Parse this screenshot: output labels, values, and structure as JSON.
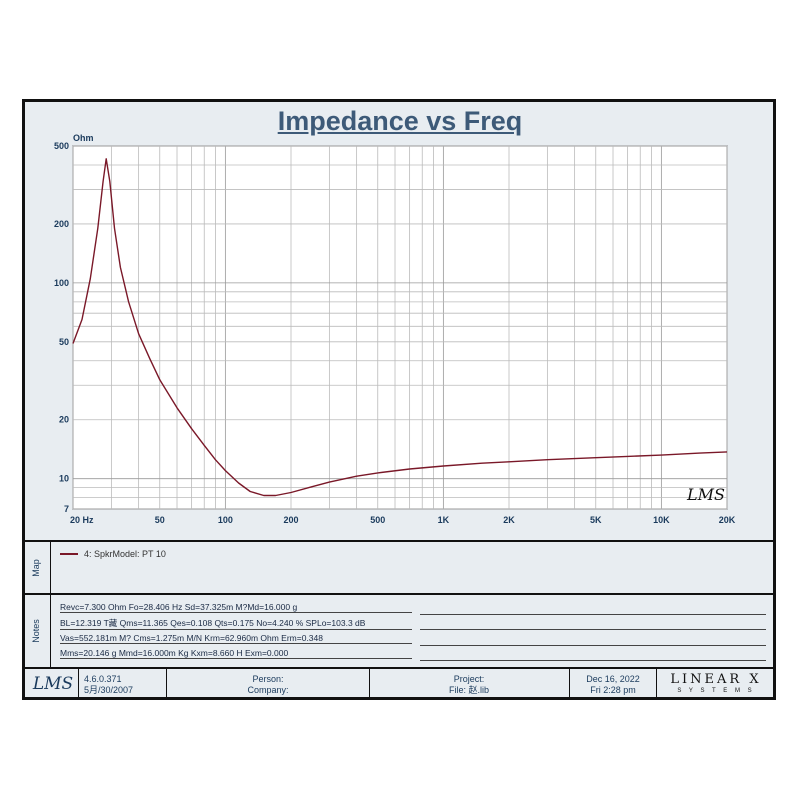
{
  "chart_data": {
    "type": "line",
    "title": "Impedance vs Freq",
    "ylabel": "Ohm",
    "xscale": "log",
    "yscale": "log",
    "xlim": [
      20,
      20000
    ],
    "ylim": [
      7,
      500
    ],
    "x_ticks": [
      {
        "value": 20,
        "label": "20  Hz"
      },
      {
        "value": 50,
        "label": "50"
      },
      {
        "value": 100,
        "label": "100"
      },
      {
        "value": 200,
        "label": "200"
      },
      {
        "value": 500,
        "label": "500"
      },
      {
        "value": 1000,
        "label": "1K"
      },
      {
        "value": 2000,
        "label": "2K"
      },
      {
        "value": 5000,
        "label": "5K"
      },
      {
        "value": 10000,
        "label": "10K"
      },
      {
        "value": 20000,
        "label": "20K"
      }
    ],
    "y_ticks": [
      {
        "value": 500,
        "label": "500"
      },
      {
        "value": 200,
        "label": "200"
      },
      {
        "value": 100,
        "label": "100"
      },
      {
        "value": 50,
        "label": "50"
      },
      {
        "value": 20,
        "label": "20"
      },
      {
        "value": 10,
        "label": "10"
      },
      {
        "value": 7,
        "label": "7"
      }
    ],
    "grid": true,
    "series": [
      {
        "name": "4: SpkrModel: PT 10",
        "color": "#7a1828",
        "points": [
          [
            20,
            49
          ],
          [
            22,
            65
          ],
          [
            24,
            105
          ],
          [
            26,
            190
          ],
          [
            27.5,
            330
          ],
          [
            28.4,
            430
          ],
          [
            29.5,
            330
          ],
          [
            31,
            190
          ],
          [
            33,
            120
          ],
          [
            36,
            80
          ],
          [
            40,
            55
          ],
          [
            45,
            41
          ],
          [
            50,
            32
          ],
          [
            60,
            23
          ],
          [
            70,
            18
          ],
          [
            80,
            14.8
          ],
          [
            90,
            12.5
          ],
          [
            100,
            11
          ],
          [
            115,
            9.5
          ],
          [
            130,
            8.6
          ],
          [
            150,
            8.2
          ],
          [
            170,
            8.2
          ],
          [
            200,
            8.5
          ],
          [
            250,
            9.1
          ],
          [
            300,
            9.6
          ],
          [
            400,
            10.3
          ],
          [
            500,
            10.7
          ],
          [
            700,
            11.2
          ],
          [
            1000,
            11.6
          ],
          [
            1500,
            12.0
          ],
          [
            2000,
            12.2
          ],
          [
            3000,
            12.5
          ],
          [
            5000,
            12.8
          ],
          [
            7000,
            13.0
          ],
          [
            10000,
            13.2
          ],
          [
            15000,
            13.5
          ],
          [
            20000,
            13.7
          ]
        ]
      }
    ],
    "watermark": "LMS"
  },
  "map": {
    "label": "Map",
    "legend_entry": "4: SpkrModel: PT 10"
  },
  "notes": {
    "label": "Notes",
    "lines": [
      "Revc=7.300 Ohm  Fo=28.406 Hz  Sd=37.325m M?Md=16.000 g",
      "BL=12.319 T藏  Qms=11.365  Qes=0.108  Qts=0.175  No=4.240 %  SPLo=103.3 dB",
      "Vas=552.181m M? Cms=1.275m M/N  Krm=62.960m Ohm  Erm=0.348",
      "Mms=20.146 g  Mmd=16.000m Kg  Kxm=8.660 H  Exm=0.000"
    ]
  },
  "footer": {
    "logo": "LMS",
    "version": "4.6.0.371",
    "version_date": "5月/30/2007",
    "person_label": "Person:",
    "company_label": "Company:",
    "project_label": "Project:",
    "file_label": "File:  赵.lib",
    "date": "Dec 16, 2022",
    "time": "Fri  2:28 pm",
    "brand_main": "LINEAR X",
    "brand_sub": "S Y S T E M S"
  }
}
